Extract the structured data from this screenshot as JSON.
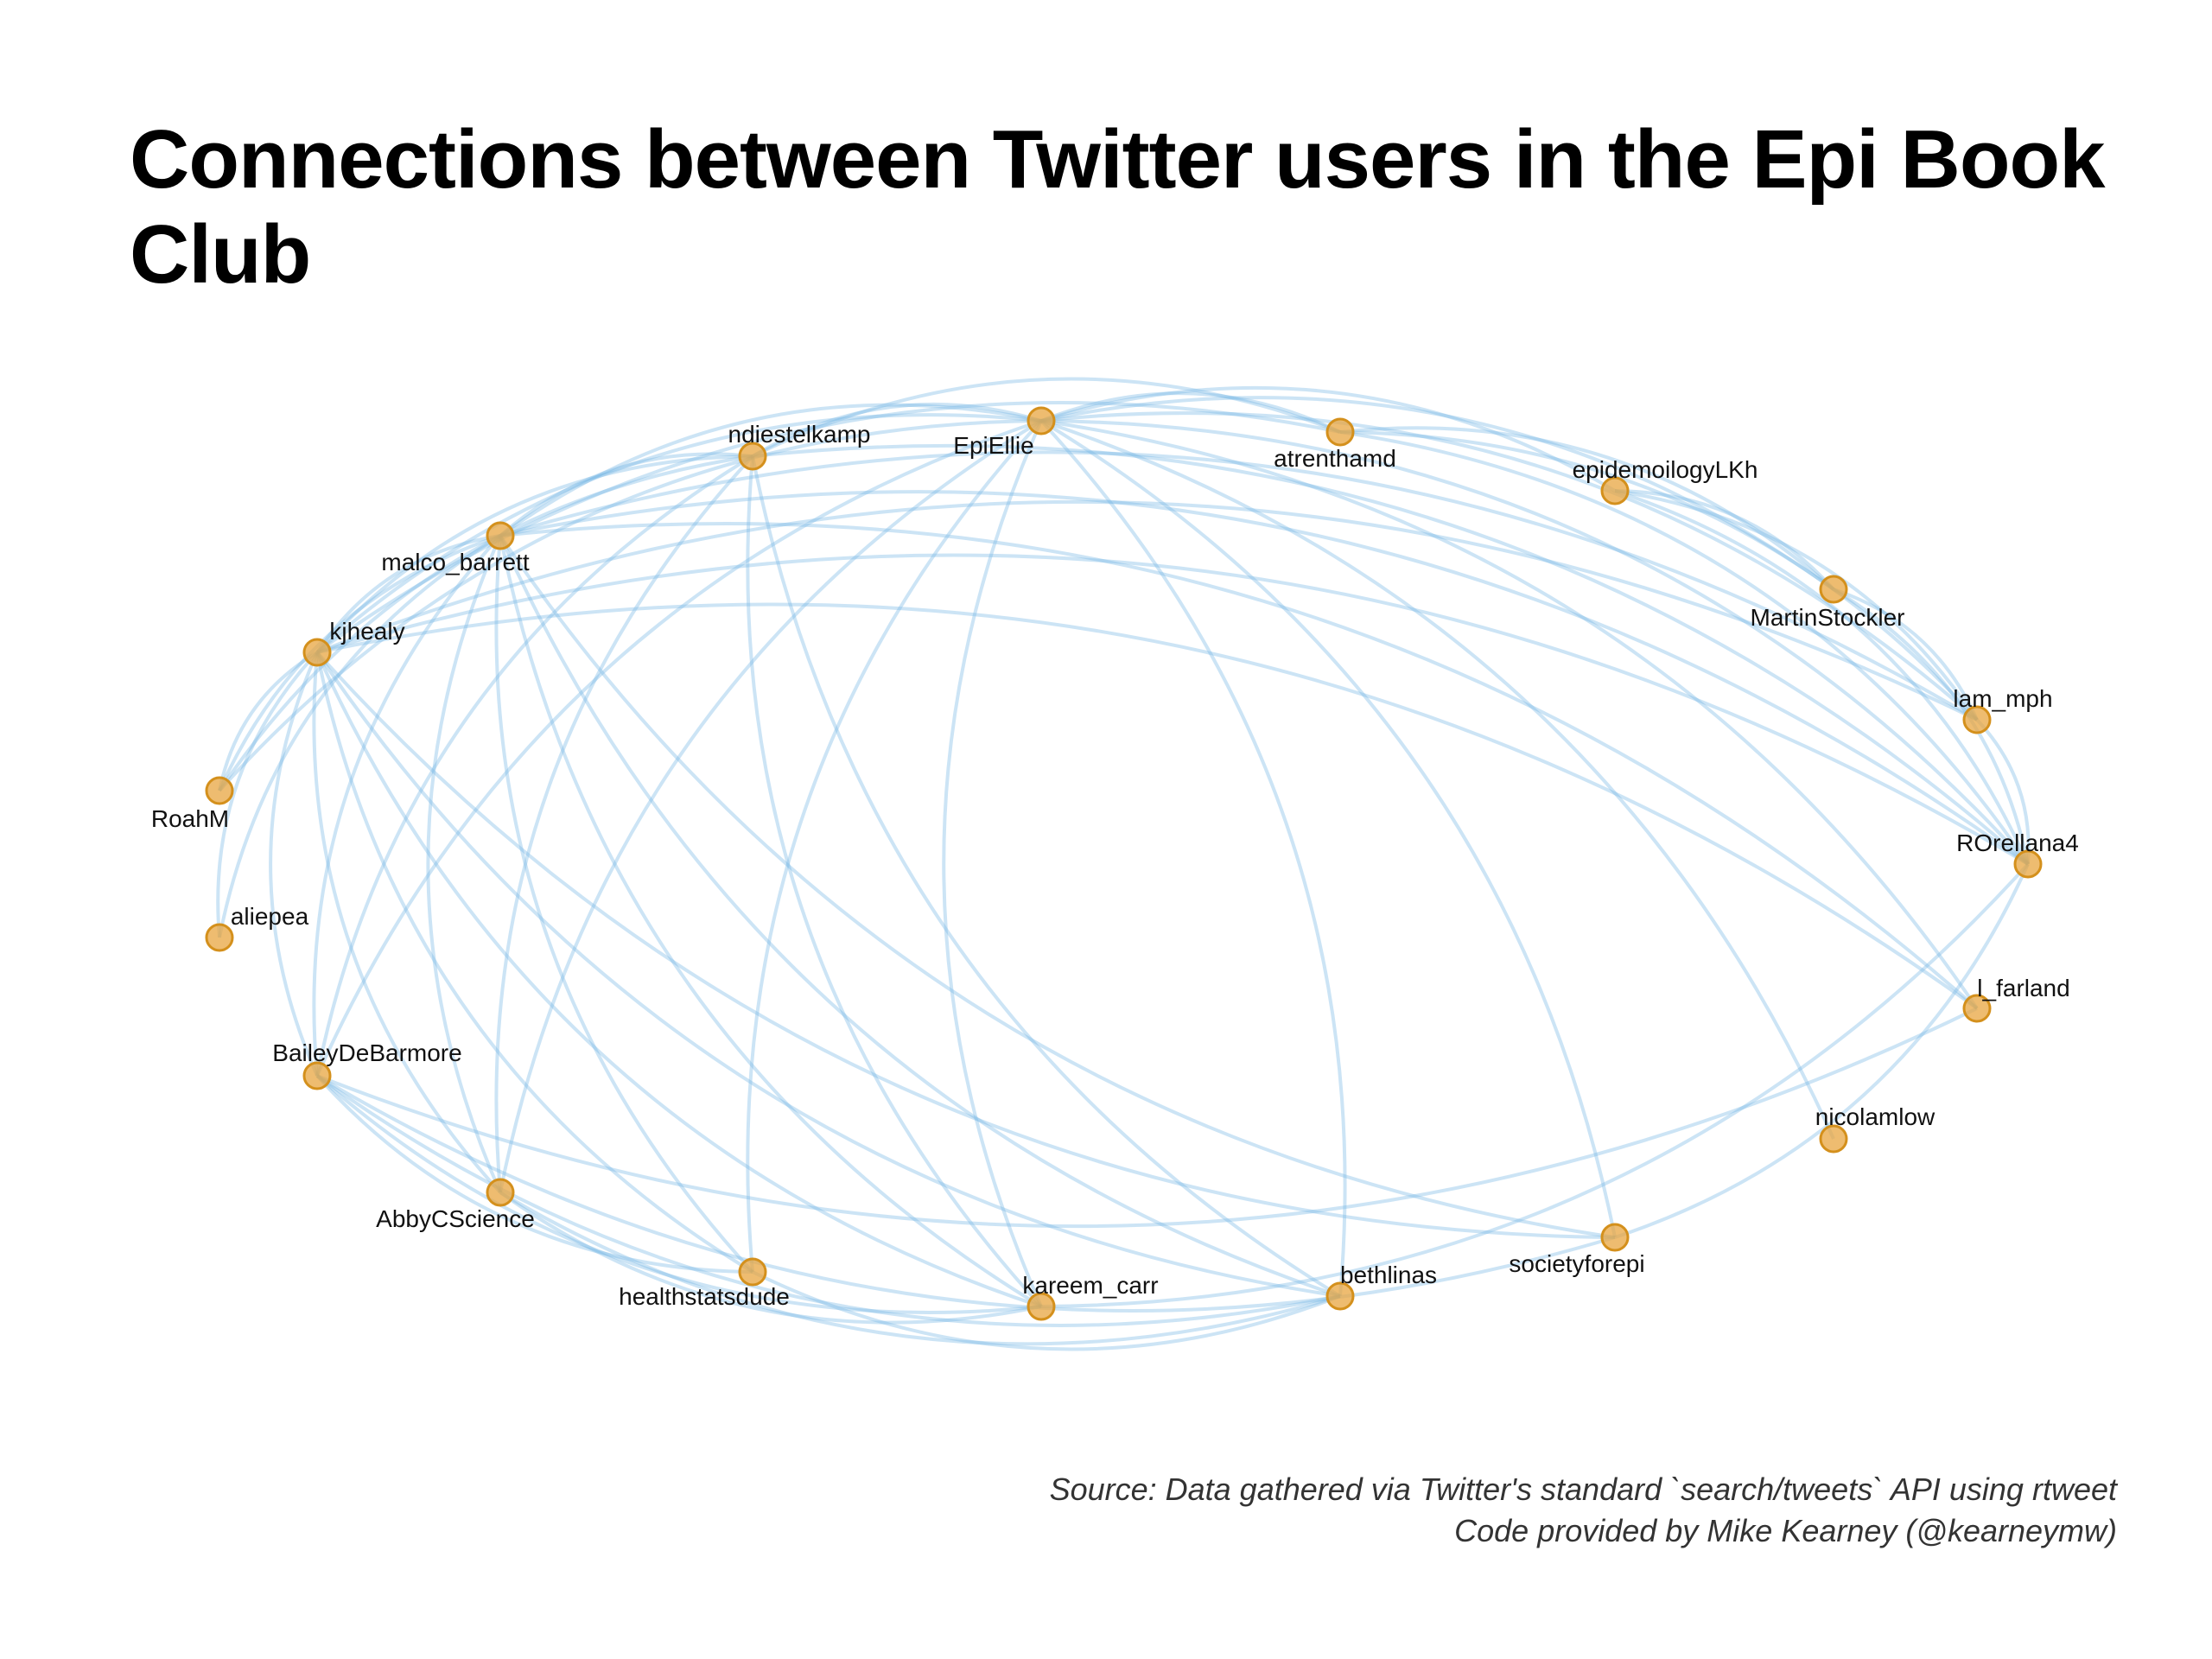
{
  "title": "Connections between Twitter users in the Epi Book Club",
  "caption": {
    "line1": "Source: Data gathered via Twitter's standard `search/tweets` API using rtweet",
    "line2": "Code provided by Mike Kearney (@kearneymw)"
  },
  "colors": {
    "edge": "#7ab8e6",
    "node_fill": "#e8a640",
    "node_stroke": "#d4901c"
  },
  "network": {
    "nodes": [
      {
        "id": "EpiEllie",
        "label": "EpiEllie"
      },
      {
        "id": "atrenthamd",
        "label": "atrenthamd"
      },
      {
        "id": "epidemoilogyLKh",
        "label": "epidemoilogyLKh"
      },
      {
        "id": "MartinStockler",
        "label": "MartinStockler"
      },
      {
        "id": "lam_mph",
        "label": "lam_mph"
      },
      {
        "id": "ROrellana4",
        "label": "ROrellana4"
      },
      {
        "id": "l_farland",
        "label": "l_farland"
      },
      {
        "id": "nicolamlow",
        "label": "nicolamlow"
      },
      {
        "id": "societyforepi",
        "label": "societyforepi"
      },
      {
        "id": "bethlinas",
        "label": "bethlinas"
      },
      {
        "id": "kareem_carr",
        "label": "kareem_carr"
      },
      {
        "id": "healthstatsdude",
        "label": "healthstatsdude"
      },
      {
        "id": "AbbyCScience",
        "label": "AbbyCScience"
      },
      {
        "id": "BaileyDeBarmore",
        "label": "BaileyDeBarmore"
      },
      {
        "id": "aliepea",
        "label": "aliepea"
      },
      {
        "id": "RoahM",
        "label": "RoahM"
      },
      {
        "id": "kjhealy",
        "label": "kjhealy"
      },
      {
        "id": "malco_barrett",
        "label": "malco_barrett"
      },
      {
        "id": "ndiestelkamp",
        "label": "ndiestelkamp"
      }
    ],
    "edges": [
      [
        "EpiEllie",
        "atrenthamd"
      ],
      [
        "EpiEllie",
        "epidemoilogyLKh"
      ],
      [
        "EpiEllie",
        "MartinStockler"
      ],
      [
        "EpiEllie",
        "lam_mph"
      ],
      [
        "EpiEllie",
        "ROrellana4"
      ],
      [
        "EpiEllie",
        "l_farland"
      ],
      [
        "EpiEllie",
        "nicolamlow"
      ],
      [
        "EpiEllie",
        "societyforepi"
      ],
      [
        "EpiEllie",
        "bethlinas"
      ],
      [
        "EpiEllie",
        "kareem_carr"
      ],
      [
        "EpiEllie",
        "healthstatsdude"
      ],
      [
        "EpiEllie",
        "AbbyCScience"
      ],
      [
        "EpiEllie",
        "BaileyDeBarmore"
      ],
      [
        "EpiEllie",
        "RoahM"
      ],
      [
        "EpiEllie",
        "kjhealy"
      ],
      [
        "EpiEllie",
        "malco_barrett"
      ],
      [
        "EpiEllie",
        "ndiestelkamp"
      ],
      [
        "atrenthamd",
        "MartinStockler"
      ],
      [
        "atrenthamd",
        "ROrellana4"
      ],
      [
        "atrenthamd",
        "lam_mph"
      ],
      [
        "epidemoilogyLKh",
        "MartinStockler"
      ],
      [
        "epidemoilogyLKh",
        "lam_mph"
      ],
      [
        "epidemoilogyLKh",
        "ROrellana4"
      ],
      [
        "MartinStockler",
        "lam_mph"
      ],
      [
        "MartinStockler",
        "ROrellana4"
      ],
      [
        "lam_mph",
        "ROrellana4"
      ],
      [
        "ROrellana4",
        "societyforepi"
      ],
      [
        "ROrellana4",
        "kareem_carr"
      ],
      [
        "l_farland",
        "kjhealy"
      ],
      [
        "l_farland",
        "malco_barrett"
      ],
      [
        "l_farland",
        "BaileyDeBarmore"
      ],
      [
        "ROrellana4",
        "kjhealy"
      ],
      [
        "ROrellana4",
        "malco_barrett"
      ],
      [
        "ROrellana4",
        "ndiestelkamp"
      ],
      [
        "societyforepi",
        "kjhealy"
      ],
      [
        "societyforepi",
        "BaileyDeBarmore"
      ],
      [
        "societyforepi",
        "malco_barrett"
      ],
      [
        "bethlinas",
        "BaileyDeBarmore"
      ],
      [
        "bethlinas",
        "kjhealy"
      ],
      [
        "bethlinas",
        "malco_barrett"
      ],
      [
        "bethlinas",
        "healthstatsdude"
      ],
      [
        "bethlinas",
        "AbbyCScience"
      ],
      [
        "bethlinas",
        "ndiestelkamp"
      ],
      [
        "kareem_carr",
        "BaileyDeBarmore"
      ],
      [
        "kareem_carr",
        "kjhealy"
      ],
      [
        "kareem_carr",
        "malco_barrett"
      ],
      [
        "kareem_carr",
        "AbbyCScience"
      ],
      [
        "kareem_carr",
        "ndiestelkamp"
      ],
      [
        "healthstatsdude",
        "BaileyDeBarmore"
      ],
      [
        "healthstatsdude",
        "kjhealy"
      ],
      [
        "healthstatsdude",
        "malco_barrett"
      ],
      [
        "AbbyCScience",
        "kjhealy"
      ],
      [
        "AbbyCScience",
        "malco_barrett"
      ],
      [
        "AbbyCScience",
        "ndiestelkamp"
      ],
      [
        "BaileyDeBarmore",
        "kjhealy"
      ],
      [
        "BaileyDeBarmore",
        "malco_barrett"
      ],
      [
        "BaileyDeBarmore",
        "ndiestelkamp"
      ],
      [
        "aliepea",
        "kjhealy"
      ],
      [
        "aliepea",
        "malco_barrett"
      ],
      [
        "RoahM",
        "kjhealy"
      ],
      [
        "RoahM",
        "malco_barrett"
      ],
      [
        "RoahM",
        "ndiestelkamp"
      ],
      [
        "kjhealy",
        "malco_barrett"
      ],
      [
        "kjhealy",
        "ndiestelkamp"
      ],
      [
        "malco_barrett",
        "ndiestelkamp"
      ],
      [
        "kjhealy",
        "lam_mph"
      ],
      [
        "malco_barrett",
        "lam_mph"
      ],
      [
        "kjhealy",
        "atrenthamd"
      ],
      [
        "ndiestelkamp",
        "atrenthamd"
      ]
    ]
  }
}
